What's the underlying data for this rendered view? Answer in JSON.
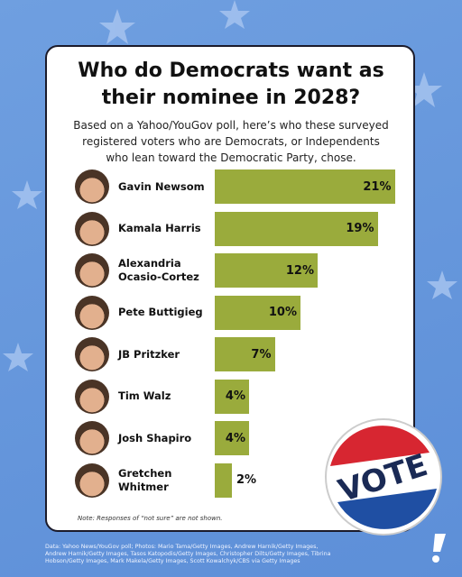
{
  "chart_data": {
    "type": "bar",
    "title": "Who do Democrats want as their nominee in 2028?",
    "subtitle": "Based on a Yahoo/YouGov poll, here’s who these surveyed registered voters who are Democrats, or Independents who lean toward the Democratic Party, chose.",
    "categories": [
      "Gavin Newsom",
      "Kamala Harris",
      "Alexandria Ocasio-Cortez",
      "Pete Buttigieg",
      "JB Pritzker",
      "Tim Walz",
      "Josh Shapiro",
      "Gretchen Whitmer"
    ],
    "values": [
      21,
      19,
      12,
      10,
      7,
      4,
      4,
      2
    ],
    "value_labels": [
      "21%",
      "19%",
      "12%",
      "10%",
      "7%",
      "4%",
      "4%",
      "2%"
    ],
    "color": "#9aab3c",
    "note": "Note: Responses of “not sure” are not shown."
  },
  "footer": {
    "credits": "Data: Yahoo News/YouGov poll; Photos: Mario Tama/Getty Images, Andrew Harnik/Getty Images, Andrew Harnik/Getty Images, Tasos Katopodis/Getty Images, Christopher Dilts/Getty Images, Tibrina Hobson/Getty Images, Mark Makela/Getty Images, Scott Kowalchyk/CBS via Getty Images",
    "badge": "VOTE"
  }
}
